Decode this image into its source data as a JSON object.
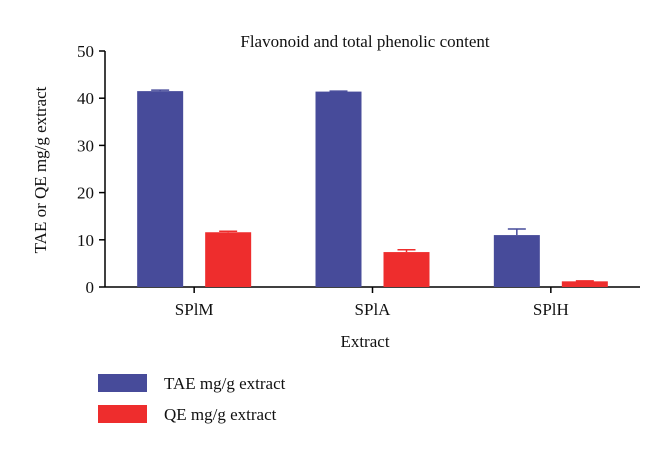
{
  "chart_data": {
    "type": "bar",
    "title": "Flavonoid and total phenolic content",
    "xlabel": "Extract",
    "ylabel": "TAE or QE mg/g extract",
    "categories": [
      "SPlM",
      "SPlA",
      "SPlH"
    ],
    "ylim": [
      0,
      50
    ],
    "yticks": [
      0,
      10,
      20,
      30,
      40,
      50
    ],
    "grid": false,
    "legend_position": "bottom-left",
    "series": [
      {
        "name": "TAE mg/g extract",
        "color": "#474b9a",
        "values": [
          41.5,
          41.4,
          11.0
        ],
        "errors": [
          0.2,
          0.1,
          1.3
        ]
      },
      {
        "name": "QE mg/g extract",
        "color": "#ee2d2d",
        "values": [
          11.6,
          7.4,
          1.2
        ],
        "errors": [
          0.2,
          0.5,
          0.1
        ]
      }
    ]
  }
}
